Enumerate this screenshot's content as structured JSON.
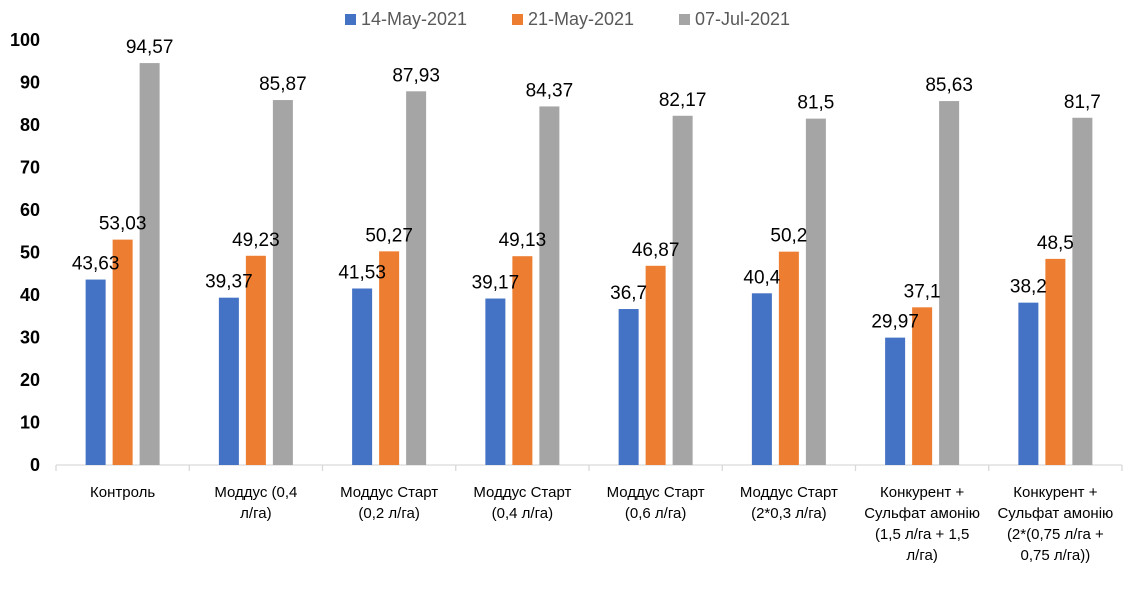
{
  "chart_data": {
    "type": "bar",
    "title": "",
    "xlabel": "",
    "ylabel": "",
    "ylim": [
      0,
      100
    ],
    "yticks": [
      0,
      10,
      20,
      30,
      40,
      50,
      60,
      70,
      80,
      90,
      100
    ],
    "grid": false,
    "legend_position": "top",
    "categories": [
      [
        "Контроль"
      ],
      [
        "Моддус (0,4",
        "л/га)"
      ],
      [
        "Моддус Старт",
        "(0,2 л/га)"
      ],
      [
        "Моддус Старт",
        "(0,4 л/га)"
      ],
      [
        "Моддус Старт",
        "(0,6 л/га)"
      ],
      [
        "Моддус Старт",
        "(2*0,3 л/га)"
      ],
      [
        "Конкурент +",
        "Сульфат амонію",
        "(1,5 л/га + 1,5",
        "л/га)"
      ],
      [
        "Конкурент +",
        "Сульфат амонію",
        "(2*(0,75 л/га +",
        "0,75 л/га))"
      ]
    ],
    "series": [
      {
        "name": "14-May-2021",
        "color": "#4472C4",
        "values": [
          43.63,
          39.37,
          41.53,
          39.17,
          36.7,
          40.4,
          29.97,
          38.2
        ],
        "labels": [
          "43,63",
          "39,37",
          "41,53",
          "39,17",
          "36,7",
          "40,4",
          "29,97",
          "38,2"
        ]
      },
      {
        "name": "21-May-2021",
        "color": "#ED7D31",
        "values": [
          53.03,
          49.23,
          50.27,
          49.13,
          46.87,
          50.2,
          37.1,
          48.5
        ],
        "labels": [
          "53,03",
          "49,23",
          "50,27",
          "49,13",
          "46,87",
          "50,2",
          "37,1",
          "48,5"
        ]
      },
      {
        "name": "07-Jul-2021",
        "color": "#A5A5A5",
        "values": [
          94.57,
          85.87,
          87.93,
          84.37,
          82.17,
          81.5,
          85.63,
          81.7
        ],
        "labels": [
          "94,57",
          "85,87",
          "87,93",
          "84,37",
          "82,17",
          "81,5",
          "85,63",
          "81,7"
        ]
      }
    ]
  }
}
